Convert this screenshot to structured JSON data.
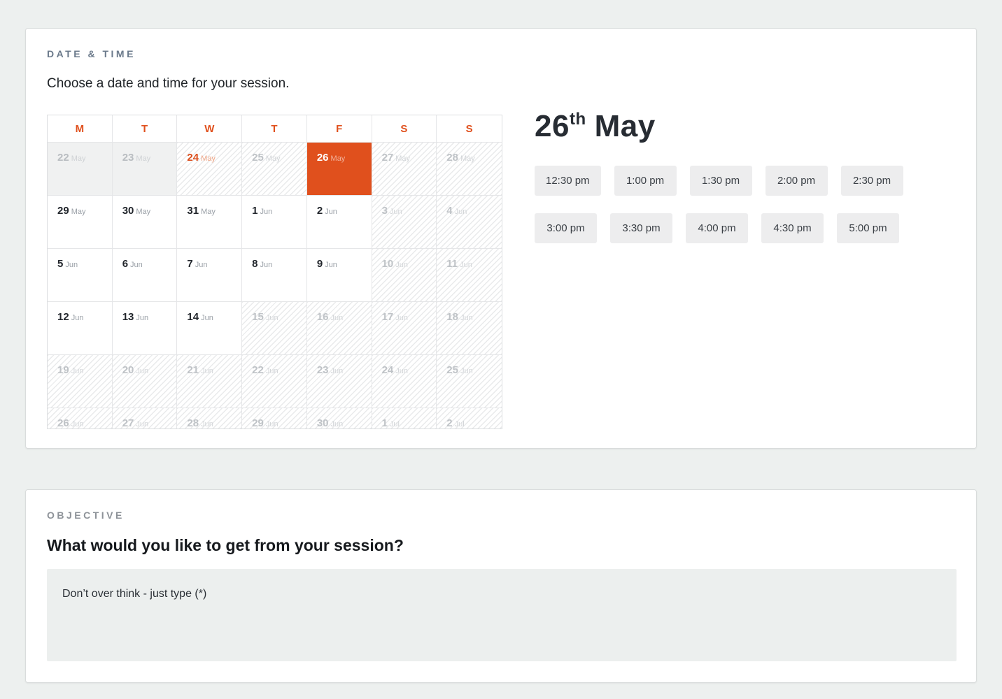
{
  "colors": {
    "accent_orange": "#e0501d",
    "page_background": "#edf0ef",
    "card_background": "#ffffff",
    "past_day_background": "#f0f1f1",
    "time_slot_background": "#ededee",
    "objective_input_background": "#ecefee"
  },
  "date_time_section": {
    "label": "DATE & TIME",
    "subtitle": "Choose a date and time for your session.",
    "calendar": {
      "weekday_headers": [
        "M",
        "T",
        "W",
        "T",
        "F",
        "S",
        "S"
      ],
      "weeks": [
        [
          {
            "day": "22",
            "month": "May",
            "state": "past"
          },
          {
            "day": "23",
            "month": "May",
            "state": "past"
          },
          {
            "day": "24",
            "month": "May",
            "state": "today"
          },
          {
            "day": "25",
            "month": "May",
            "state": "unavailable"
          },
          {
            "day": "26",
            "month": "May",
            "state": "selected"
          },
          {
            "day": "27",
            "month": "May",
            "state": "unavailable"
          },
          {
            "day": "28",
            "month": "May",
            "state": "unavailable"
          }
        ],
        [
          {
            "day": "29",
            "month": "May",
            "state": "available"
          },
          {
            "day": "30",
            "month": "May",
            "state": "available"
          },
          {
            "day": "31",
            "month": "May",
            "state": "available"
          },
          {
            "day": "1",
            "month": "Jun",
            "state": "available"
          },
          {
            "day": "2",
            "month": "Jun",
            "state": "available"
          },
          {
            "day": "3",
            "month": "Jun",
            "state": "unavailable"
          },
          {
            "day": "4",
            "month": "Jun",
            "state": "unavailable"
          }
        ],
        [
          {
            "day": "5",
            "month": "Jun",
            "state": "available"
          },
          {
            "day": "6",
            "month": "Jun",
            "state": "available"
          },
          {
            "day": "7",
            "month": "Jun",
            "state": "available"
          },
          {
            "day": "8",
            "month": "Jun",
            "state": "available"
          },
          {
            "day": "9",
            "month": "Jun",
            "state": "available"
          },
          {
            "day": "10",
            "month": "Jun",
            "state": "unavailable"
          },
          {
            "day": "11",
            "month": "Jun",
            "state": "unavailable"
          }
        ],
        [
          {
            "day": "12",
            "month": "Jun",
            "state": "available"
          },
          {
            "day": "13",
            "month": "Jun",
            "state": "available"
          },
          {
            "day": "14",
            "month": "Jun",
            "state": "available"
          },
          {
            "day": "15",
            "month": "Jun",
            "state": "unavailable"
          },
          {
            "day": "16",
            "month": "Jun",
            "state": "unavailable"
          },
          {
            "day": "17",
            "month": "Jun",
            "state": "unavailable"
          },
          {
            "day": "18",
            "month": "Jun",
            "state": "unavailable"
          }
        ],
        [
          {
            "day": "19",
            "month": "Jun",
            "state": "unavailable"
          },
          {
            "day": "20",
            "month": "Jun",
            "state": "unavailable"
          },
          {
            "day": "21",
            "month": "Jun",
            "state": "unavailable"
          },
          {
            "day": "22",
            "month": "Jun",
            "state": "unavailable"
          },
          {
            "day": "23",
            "month": "Jun",
            "state": "unavailable"
          },
          {
            "day": "24",
            "month": "Jun",
            "state": "unavailable"
          },
          {
            "day": "25",
            "month": "Jun",
            "state": "unavailable"
          }
        ],
        [
          {
            "day": "26",
            "month": "Jun",
            "state": "unavailable"
          },
          {
            "day": "27",
            "month": "Jun",
            "state": "unavailable"
          },
          {
            "day": "28",
            "month": "Jun",
            "state": "unavailable"
          },
          {
            "day": "29",
            "month": "Jun",
            "state": "unavailable"
          },
          {
            "day": "30",
            "month": "Jun",
            "state": "unavailable"
          },
          {
            "day": "1",
            "month": "Jul",
            "state": "unavailable"
          },
          {
            "day": "2",
            "month": "Jul",
            "state": "unavailable"
          }
        ]
      ]
    },
    "selected_date": {
      "day": "26",
      "ordinal": "th",
      "month": "May"
    },
    "time_slots": [
      "12:30 pm",
      "1:00 pm",
      "1:30 pm",
      "2:00 pm",
      "2:30 pm",
      "3:00 pm",
      "3:30 pm",
      "4:00 pm",
      "4:30 pm",
      "5:00 pm"
    ]
  },
  "objective_section": {
    "label": "OBJECTIVE",
    "question": "What would you like to get from your session?",
    "input_placeholder": "Don’t over think - just type (*)"
  }
}
